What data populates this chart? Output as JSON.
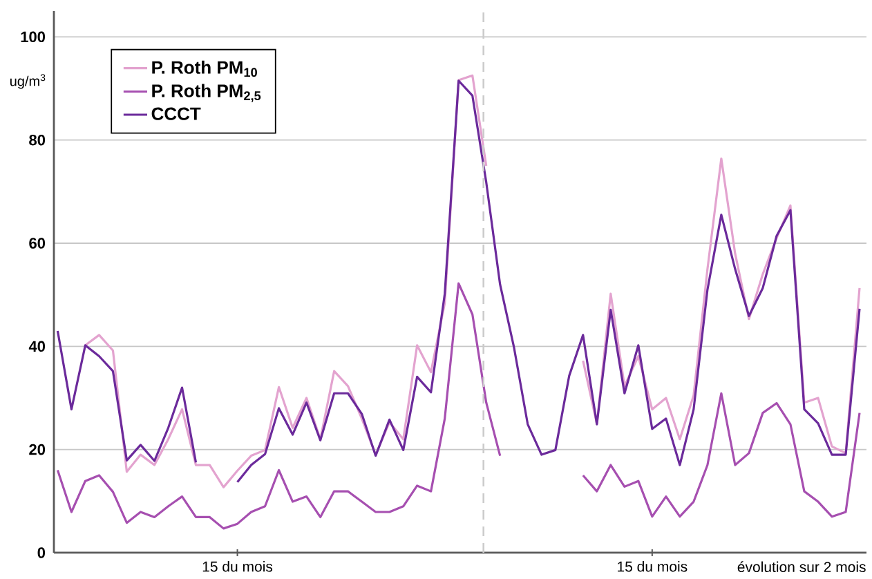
{
  "chart_data": {
    "type": "line",
    "ylabel": "ug/m$^{3}$",
    "annotations": [
      "évolution sur 2 mois"
    ],
    "categories": [
      null,
      null,
      null,
      null,
      null,
      null,
      null,
      null,
      null,
      null,
      null,
      null,
      null,
      "15 du mois",
      null,
      null,
      null,
      null,
      null,
      null,
      null,
      null,
      null,
      null,
      null,
      null,
      null,
      null,
      null,
      null,
      null,
      null,
      null,
      null,
      null,
      null,
      null,
      null,
      null,
      null,
      null,
      null,
      null,
      "15 du mois",
      null,
      null,
      null,
      null,
      null,
      null,
      null,
      null,
      null,
      null,
      null,
      null,
      null,
      null,
      null
    ],
    "ylim": [
      0,
      105
    ],
    "yticks": [
      0,
      20,
      40,
      60,
      80,
      100
    ],
    "grid": "y",
    "legend": "top left",
    "line_style": "solid",
    "series": [
      {
        "name": "P. Roth PM$_{10}$",
        "color": "#e3a3cf",
        "values": [
          null,
          null,
          40.2,
          42.2,
          39.2,
          15.7,
          19.0,
          17.0,
          22.0,
          27.8,
          17.0,
          17.0,
          12.7,
          15.9,
          18.8,
          19.9,
          32.1,
          24.2,
          30.0,
          22.0,
          35.2,
          32.3,
          26.0,
          19.0,
          25.3,
          22.0,
          40.2,
          35.0,
          48.4,
          91.6,
          92.5,
          75,
          null,
          null,
          null,
          null,
          null,
          null,
          37.2,
          25,
          50.2,
          32.3,
          38.1,
          27.8,
          30.0,
          22.0,
          30.5,
          55,
          76.4,
          58,
          45.3,
          54.0,
          61,
          67.3,
          29.1,
          30.0,
          20.6,
          19.3,
          51.3
        ]
      },
      {
        "name": "P. Roth PM$_{2,5}$",
        "color": "#a64fb0",
        "values": [
          16.0,
          7.9,
          13.9,
          15.0,
          11.8,
          5.8,
          7.9,
          6.9,
          9.0,
          10.9,
          6.9,
          6.9,
          4.7,
          5.6,
          7.9,
          9.0,
          16.0,
          9.9,
          10.9,
          6.9,
          11.9,
          11.9,
          9.9,
          7.9,
          7.9,
          9.0,
          13.0,
          11.9,
          26.0,
          52.2,
          46.2,
          29.1,
          18.8,
          null,
          null,
          null,
          null,
          null,
          15.0,
          11.9,
          17.0,
          12.8,
          13.9,
          7.0,
          10.9,
          7.0,
          9.9,
          17.0,
          30.9,
          17.0,
          19.3,
          27.1,
          29.0,
          24.9,
          11.9,
          9.9,
          7.0,
          7.9,
          27.1
        ]
      },
      {
        "name": "CCCT",
        "color": "#6b2a9b",
        "values": [
          43.0,
          27.8,
          40.2,
          38.1,
          35.2,
          17.9,
          20.9,
          17.8,
          24.2,
          32.0,
          17.5,
          null,
          null,
          13.7,
          17.0,
          19.1,
          28.0,
          22.9,
          29.1,
          21.8,
          30.9,
          30.9,
          26.9,
          18.8,
          25.8,
          19.9,
          34.1,
          31.1,
          50.2,
          91.5,
          88.6,
          71.8,
          52,
          39.9,
          24.9,
          19.0,
          19.9,
          34.3,
          42.2,
          24.9,
          47.1,
          30.9,
          40.2,
          24.0,
          26.0,
          17.0,
          27.8,
          51,
          65.5,
          55,
          45.9,
          51.3,
          61.4,
          66.4,
          27.8,
          25.1,
          19.0,
          19.0,
          47.3
        ]
      }
    ]
  }
}
